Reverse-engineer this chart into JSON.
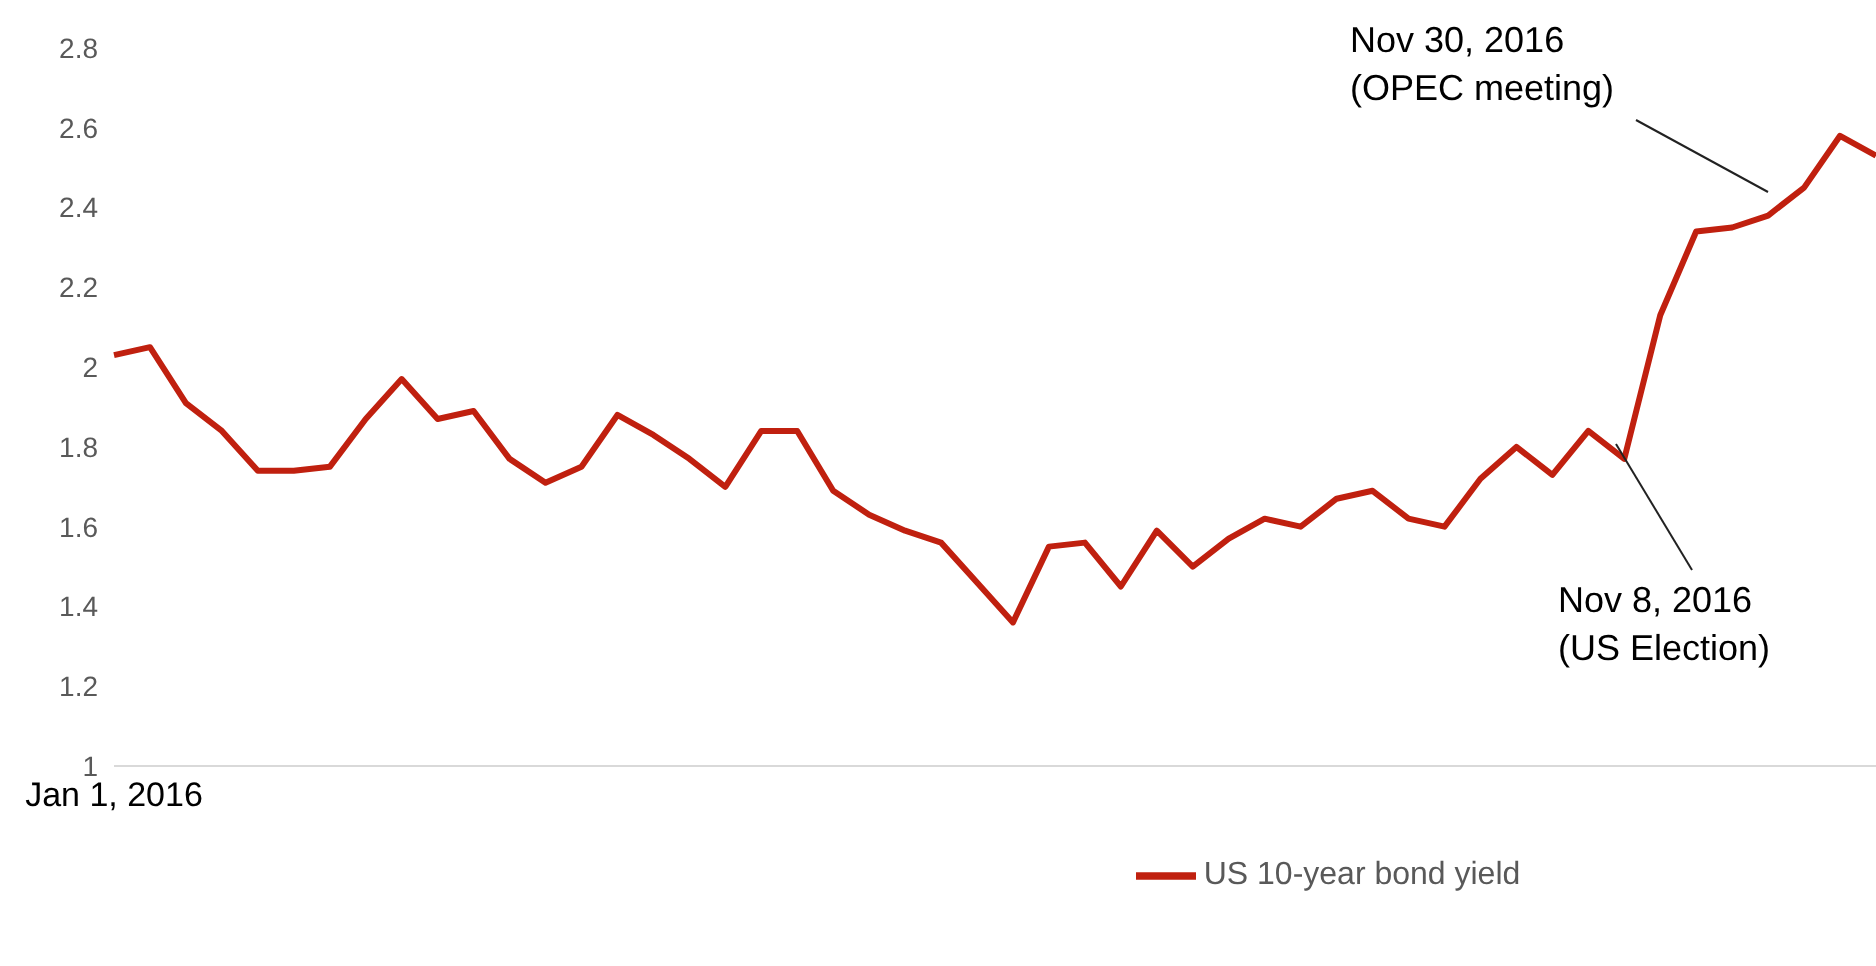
{
  "chart_data": {
    "type": "line",
    "categories": [
      "Jan 1, 2016",
      null,
      null,
      null,
      null,
      null,
      null,
      null,
      null,
      null,
      null,
      null,
      null,
      null,
      null,
      null,
      null,
      null,
      null,
      null,
      null,
      null,
      null,
      null,
      null,
      null,
      null,
      null,
      null,
      null,
      null,
      null,
      null,
      null,
      null,
      null,
      null,
      null,
      null,
      null,
      null,
      null,
      null,
      null,
      null,
      null,
      null,
      null,
      null,
      null
    ],
    "series": [
      {
        "name": "US 10-year bond yield",
        "color": "#c0200f",
        "values": [
          2.03,
          2.05,
          1.91,
          1.84,
          1.74,
          1.74,
          1.75,
          1.87,
          1.97,
          1.87,
          1.89,
          1.77,
          1.71,
          1.75,
          1.88,
          1.83,
          1.77,
          1.7,
          1.84,
          1.84,
          1.69,
          1.63,
          1.59,
          1.56,
          1.46,
          1.36,
          1.55,
          1.56,
          1.45,
          1.59,
          1.5,
          1.57,
          1.62,
          1.6,
          1.67,
          1.69,
          1.62,
          1.6,
          1.72,
          1.8,
          1.73,
          1.84,
          1.77,
          2.13,
          2.34,
          2.35,
          2.38,
          2.45,
          2.58,
          2.53
        ]
      }
    ],
    "ylim": [
      1,
      2.8
    ],
    "yticks": [
      1,
      1.2,
      1.4,
      1.6,
      1.8,
      2,
      2.2,
      2.4,
      2.6,
      2.8
    ],
    "annotations": [
      "Nov 30, 2016\n(OPEC meeting)",
      "Nov 8, 2016\n(US Election)"
    ],
    "legend": "bottom"
  }
}
